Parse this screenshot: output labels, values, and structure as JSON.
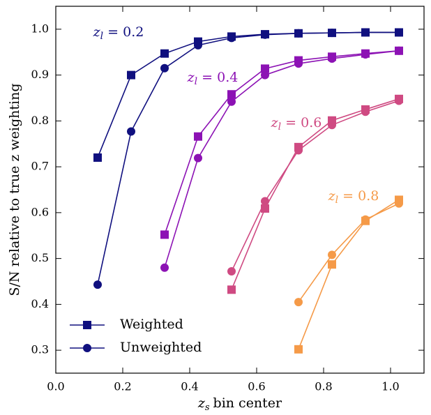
{
  "chart_data": {
    "type": "line",
    "xlabel": {
      "var": "z",
      "sub": "s",
      "rest": "bin center"
    },
    "ylabel": "S/N relative to true z weighting",
    "xlim": [
      0,
      1.1
    ],
    "ylim": [
      0.25,
      1.05
    ],
    "xticks": [
      {
        "value": 0,
        "label": "0.0"
      },
      0.2,
      0.4,
      0.6,
      0.8,
      {
        "value": 1,
        "label": "1.0"
      }
    ],
    "yticks": [
      0.3,
      0.4,
      0.5,
      0.6,
      0.7,
      0.8,
      0.9,
      {
        "value": 1,
        "label": "1.0"
      }
    ],
    "legend": [
      {
        "label": "Weighted",
        "marker": "square",
        "color": "#10107f"
      },
      {
        "label": "Unweighted",
        "marker": "circle",
        "color": "#10107f"
      }
    ],
    "legend_loc": "lower left",
    "groups": [
      {
        "label": {
          "var": "z",
          "sub": "l",
          "rest": "= 0.2"
        },
        "color": "#10107f",
        "x": [
          0.125,
          0.225,
          0.325,
          0.425,
          0.525,
          0.625,
          0.725,
          0.825,
          0.925,
          1.025
        ],
        "series": [
          {
            "marker": "square",
            "values": [
              0.72,
              0.9,
              0.947,
              0.973,
              0.984,
              0.989,
              0.991,
              0.992,
              0.993,
              0.993
            ]
          },
          {
            "marker": "circle",
            "values": [
              0.443,
              0.777,
              0.915,
              0.965,
              0.981,
              0.988,
              0.991,
              0.992,
              0.993,
              0.993
            ]
          }
        ]
      },
      {
        "label": {
          "var": "z",
          "sub": "l",
          "rest": "= 0.4"
        },
        "color": "#8c12b4",
        "x": [
          0.325,
          0.425,
          0.525,
          0.625,
          0.725,
          0.825,
          0.925,
          1.025
        ],
        "series": [
          {
            "marker": "square",
            "values": [
              0.552,
              0.766,
              0.858,
              0.914,
              0.932,
              0.94,
              0.947,
              0.953
            ]
          },
          {
            "marker": "circle",
            "values": [
              0.48,
              0.719,
              0.842,
              0.9,
              0.925,
              0.936,
              0.945,
              0.953
            ]
          }
        ]
      },
      {
        "label": {
          "var": "z",
          "sub": "l",
          "rest": "= 0.6"
        },
        "color": "#cf4a82",
        "x": [
          0.525,
          0.625,
          0.725,
          0.825,
          0.925,
          1.025
        ],
        "series": [
          {
            "marker": "square",
            "values": [
              0.432,
              0.609,
              0.743,
              0.801,
              0.825,
              0.848
            ]
          },
          {
            "marker": "circle",
            "values": [
              0.472,
              0.625,
              0.736,
              0.791,
              0.82,
              0.844
            ]
          }
        ]
      },
      {
        "label": {
          "var": "z",
          "sub": "l",
          "rest": "= 0.8"
        },
        "color": "#f59a48",
        "x": [
          0.725,
          0.825,
          0.925,
          1.025
        ],
        "series": [
          {
            "marker": "square",
            "values": [
              0.302,
              0.487,
              0.582,
              0.628
            ]
          },
          {
            "marker": "circle",
            "values": [
              0.405,
              0.508,
              0.585,
              0.62
            ]
          }
        ]
      }
    ]
  }
}
